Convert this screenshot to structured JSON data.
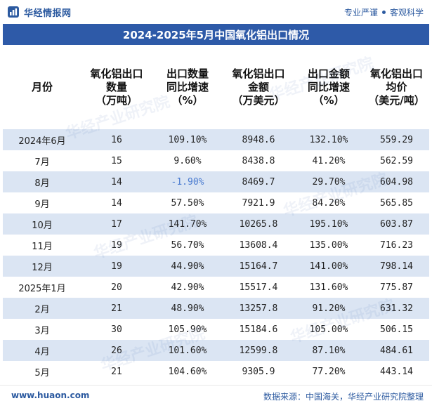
{
  "header": {
    "brand_name": "华经情报网",
    "slogan_left": "专业严谨",
    "slogan_right": "客观科学"
  },
  "title": "2024-2025年5月中国氧化铝出口情况",
  "columns": [
    "月份",
    "氧化铝出口\n数量\n（万吨）",
    "出口数量\n同比增速\n（%）",
    "氧化铝出口\n金额\n（万美元）",
    "出口金额\n同比增速\n（%）",
    "氧化铝出口\n均价\n（美元/吨）"
  ],
  "rows": [
    {
      "month": "2024年6月",
      "qty": "16",
      "qty_yoy": "109.10%",
      "amount": "8948.6",
      "amount_yoy": "132.10%",
      "price": "559.29"
    },
    {
      "month": "7月",
      "qty": "15",
      "qty_yoy": "9.60%",
      "amount": "8438.8",
      "amount_yoy": "41.20%",
      "price": "562.59"
    },
    {
      "month": "8月",
      "qty": "14",
      "qty_yoy": "-1.90%",
      "amount": "8469.7",
      "amount_yoy": "29.70%",
      "price": "604.98"
    },
    {
      "month": "9月",
      "qty": "14",
      "qty_yoy": "57.50%",
      "amount": "7921.9",
      "amount_yoy": "84.20%",
      "price": "565.85"
    },
    {
      "month": "10月",
      "qty": "17",
      "qty_yoy": "141.70%",
      "amount": "10265.8",
      "amount_yoy": "195.10%",
      "price": "603.87"
    },
    {
      "month": "11月",
      "qty": "19",
      "qty_yoy": "56.70%",
      "amount": "13608.4",
      "amount_yoy": "135.00%",
      "price": "716.23"
    },
    {
      "month": "12月",
      "qty": "19",
      "qty_yoy": "44.90%",
      "amount": "15164.7",
      "amount_yoy": "141.00%",
      "price": "798.14"
    },
    {
      "month": "2025年1月",
      "qty": "20",
      "qty_yoy": "42.90%",
      "amount": "15517.4",
      "amount_yoy": "131.60%",
      "price": "775.87"
    },
    {
      "month": "2月",
      "qty": "21",
      "qty_yoy": "48.90%",
      "amount": "13257.8",
      "amount_yoy": "91.20%",
      "price": "631.32"
    },
    {
      "month": "3月",
      "qty": "30",
      "qty_yoy": "105.90%",
      "amount": "15184.6",
      "amount_yoy": "105.00%",
      "price": "506.15"
    },
    {
      "month": "4月",
      "qty": "26",
      "qty_yoy": "101.60%",
      "amount": "12599.8",
      "amount_yoy": "87.10%",
      "price": "484.61"
    },
    {
      "month": "5月",
      "qty": "21",
      "qty_yoy": "104.60%",
      "amount": "9305.9",
      "amount_yoy": "77.20%",
      "price": "443.14"
    }
  ],
  "footer": {
    "url": "www.huaon.com",
    "source": "数据来源：中国海关，华经产业研究院整理"
  },
  "watermark": "华经产业研究院",
  "colors": {
    "title_bg": "#2e5aa8",
    "stripe": "#dbe5f3",
    "negative": "#4a7bd0"
  }
}
